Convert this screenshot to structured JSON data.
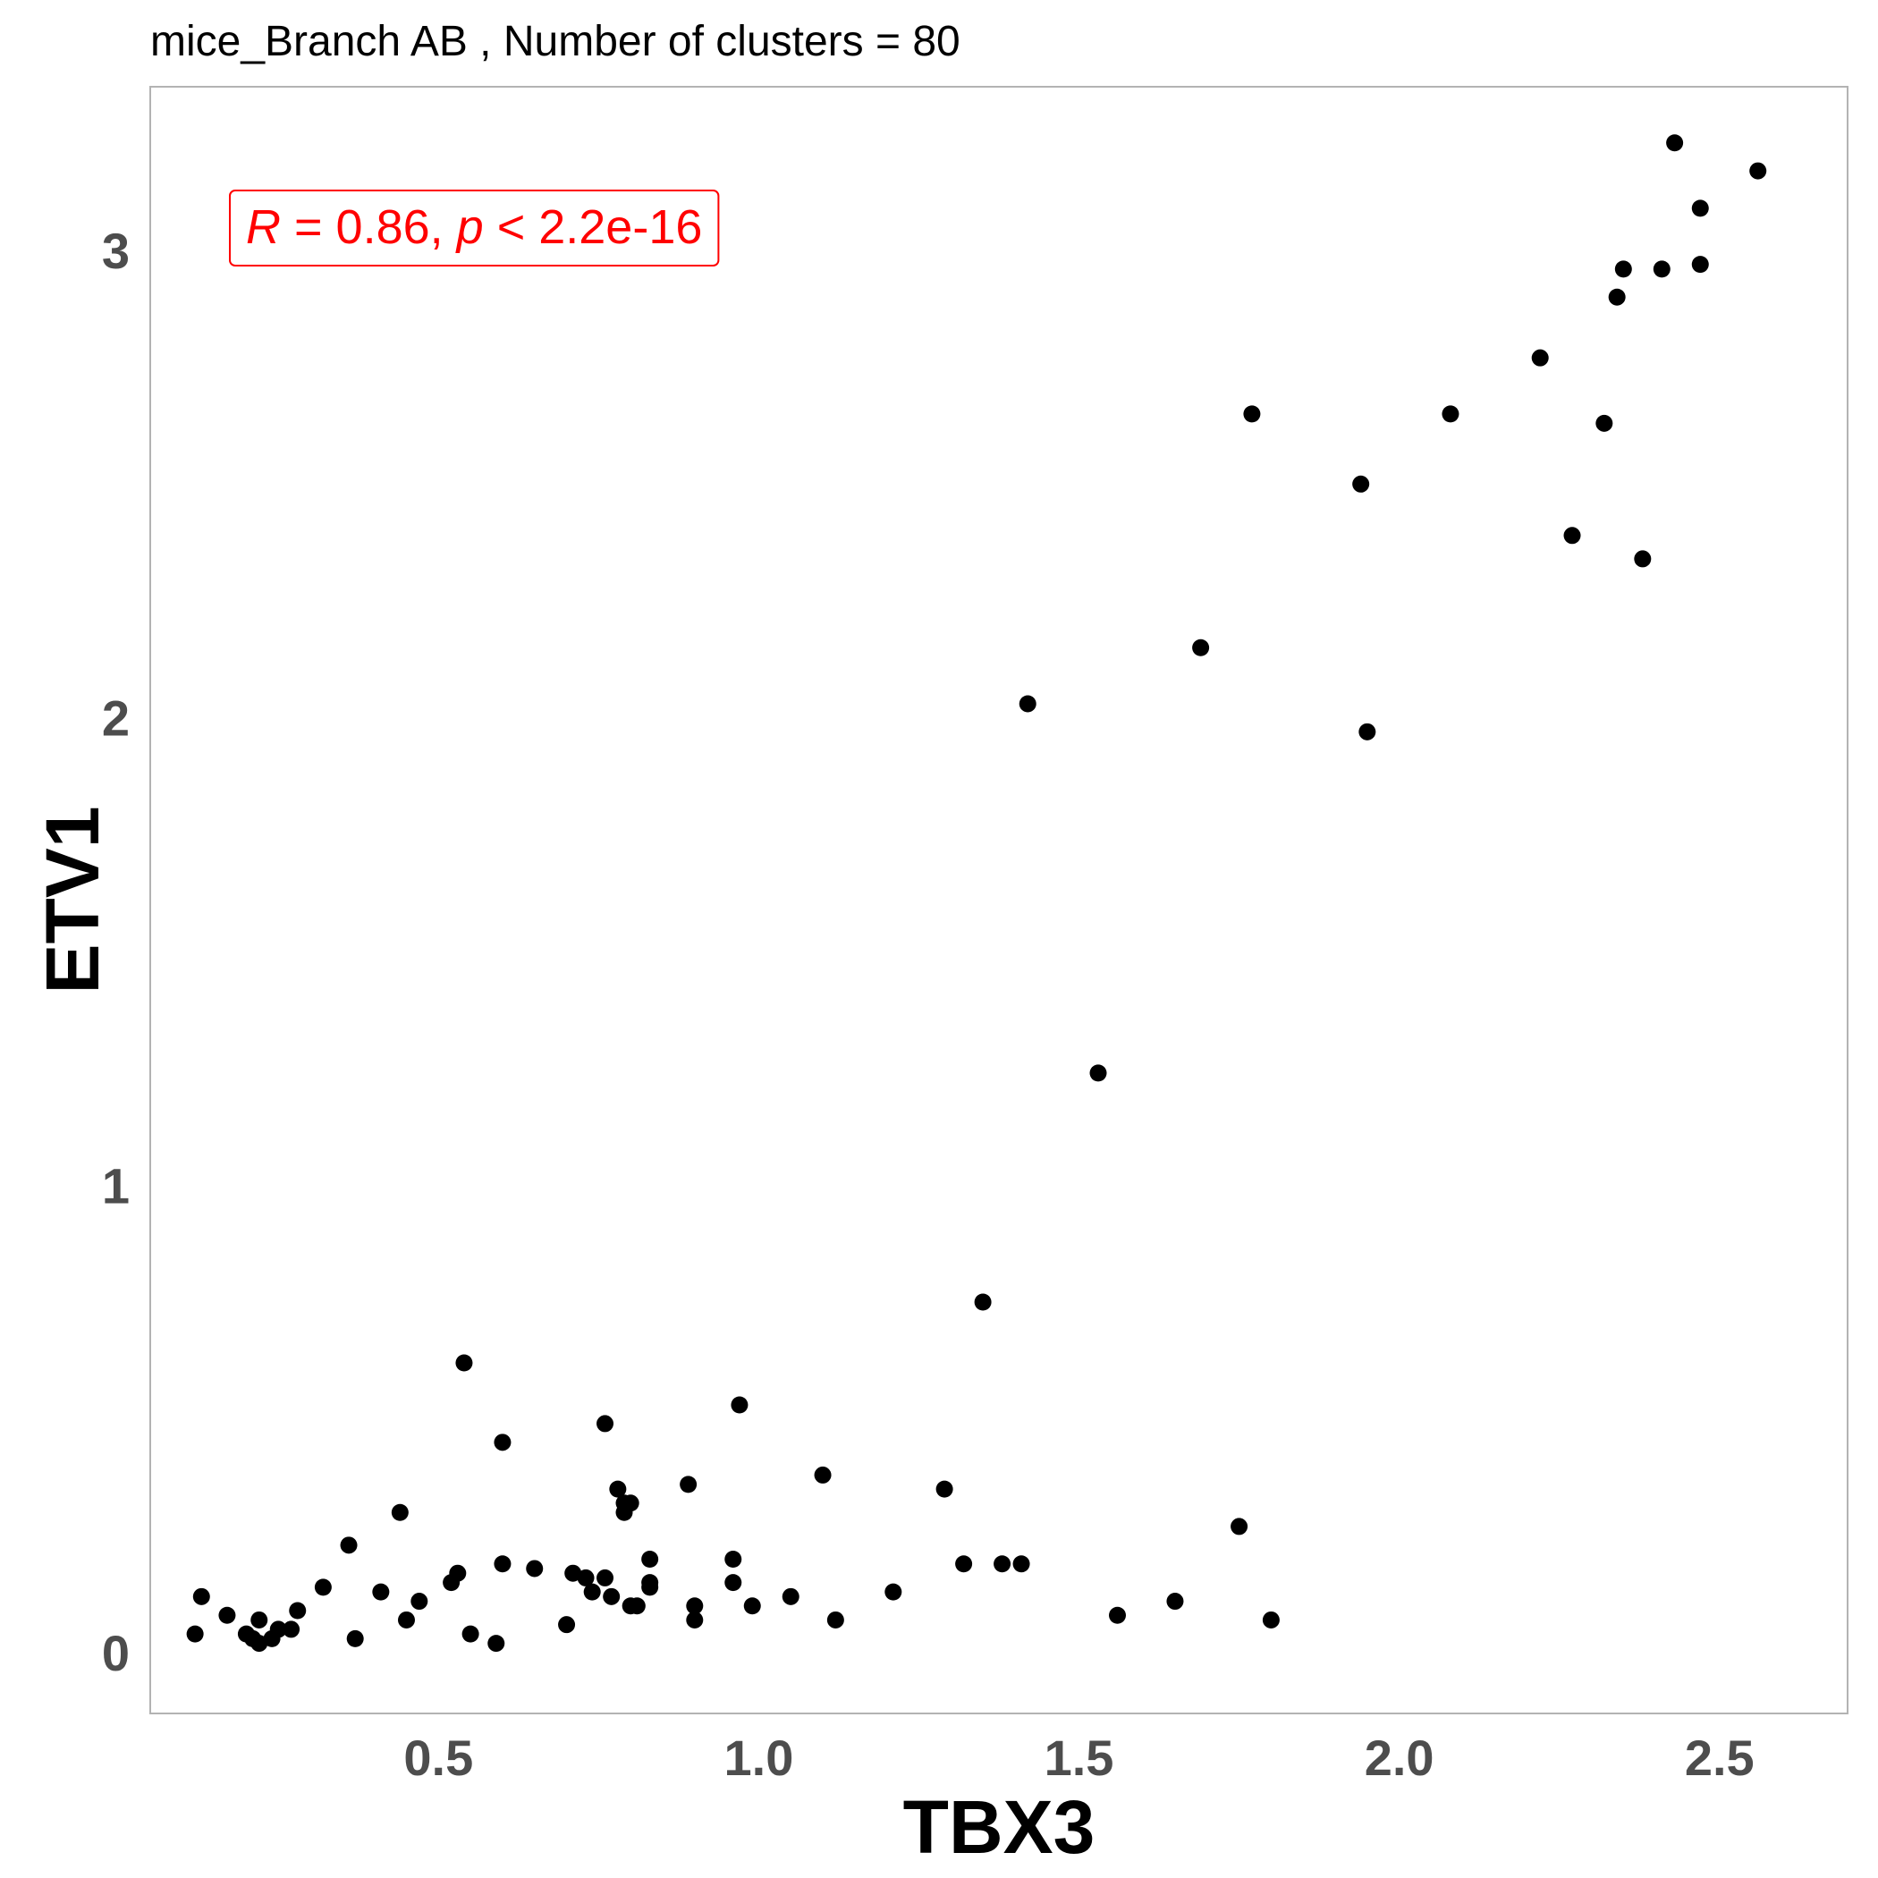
{
  "chart_data": {
    "type": "scatter",
    "title": "mice_Branch AB , Number of clusters =  80",
    "xlabel": "TBX3",
    "ylabel": "ETV1",
    "xlim": [
      0.05,
      2.7
    ],
    "ylim": [
      -0.13,
      3.35
    ],
    "x_ticks": [
      0.5,
      1.0,
      1.5,
      2.0,
      2.5
    ],
    "x_tick_labels": [
      "0.5",
      "1.0",
      "1.5",
      "2.0",
      "2.5"
    ],
    "y_ticks": [
      0,
      1,
      2,
      3
    ],
    "y_tick_labels": [
      "0",
      "1",
      "2",
      "3"
    ],
    "grid": false,
    "point_color": "#000000",
    "annotation": {
      "r_label": "R",
      "r_text": " = 0.86, ",
      "p_label": "p",
      "p_text": " < 2.2e-16",
      "color": "#ff0000"
    },
    "points": [
      {
        "x": 2.43,
        "y": 3.23
      },
      {
        "x": 2.56,
        "y": 3.17
      },
      {
        "x": 2.47,
        "y": 3.09
      },
      {
        "x": 2.35,
        "y": 2.96
      },
      {
        "x": 2.41,
        "y": 2.96
      },
      {
        "x": 2.47,
        "y": 2.97
      },
      {
        "x": 2.34,
        "y": 2.9
      },
      {
        "x": 2.22,
        "y": 2.77
      },
      {
        "x": 1.77,
        "y": 2.65
      },
      {
        "x": 2.08,
        "y": 2.65
      },
      {
        "x": 2.32,
        "y": 2.63
      },
      {
        "x": 1.94,
        "y": 2.5
      },
      {
        "x": 2.27,
        "y": 2.39
      },
      {
        "x": 2.38,
        "y": 2.34
      },
      {
        "x": 1.69,
        "y": 2.15
      },
      {
        "x": 1.42,
        "y": 2.03
      },
      {
        "x": 1.95,
        "y": 1.97
      },
      {
        "x": 1.53,
        "y": 1.24
      },
      {
        "x": 1.35,
        "y": 0.75
      },
      {
        "x": 0.54,
        "y": 0.62
      },
      {
        "x": 0.97,
        "y": 0.53
      },
      {
        "x": 0.76,
        "y": 0.49
      },
      {
        "x": 0.6,
        "y": 0.45
      },
      {
        "x": 1.1,
        "y": 0.38
      },
      {
        "x": 0.89,
        "y": 0.36
      },
      {
        "x": 1.29,
        "y": 0.35
      },
      {
        "x": 0.78,
        "y": 0.35
      },
      {
        "x": 0.79,
        "y": 0.32
      },
      {
        "x": 0.8,
        "y": 0.32
      },
      {
        "x": 0.79,
        "y": 0.3
      },
      {
        "x": 0.44,
        "y": 0.3
      },
      {
        "x": 1.75,
        "y": 0.27
      },
      {
        "x": 0.36,
        "y": 0.23
      },
      {
        "x": 0.83,
        "y": 0.2
      },
      {
        "x": 0.96,
        "y": 0.2
      },
      {
        "x": 1.32,
        "y": 0.19
      },
      {
        "x": 1.38,
        "y": 0.19
      },
      {
        "x": 1.41,
        "y": 0.19
      },
      {
        "x": 0.6,
        "y": 0.19
      },
      {
        "x": 0.65,
        "y": 0.18
      },
      {
        "x": 0.53,
        "y": 0.17
      },
      {
        "x": 0.71,
        "y": 0.17
      },
      {
        "x": 0.73,
        "y": 0.16
      },
      {
        "x": 0.76,
        "y": 0.16
      },
      {
        "x": 0.52,
        "y": 0.15
      },
      {
        "x": 0.96,
        "y": 0.15
      },
      {
        "x": 0.83,
        "y": 0.15
      },
      {
        "x": 0.83,
        "y": 0.14
      },
      {
        "x": 0.32,
        "y": 0.14
      },
      {
        "x": 0.41,
        "y": 0.13
      },
      {
        "x": 1.21,
        "y": 0.13
      },
      {
        "x": 0.74,
        "y": 0.13
      },
      {
        "x": 0.77,
        "y": 0.12
      },
      {
        "x": 1.05,
        "y": 0.12
      },
      {
        "x": 0.13,
        "y": 0.12
      },
      {
        "x": 0.47,
        "y": 0.11
      },
      {
        "x": 0.99,
        "y": 0.1
      },
      {
        "x": 1.65,
        "y": 0.11
      },
      {
        "x": 0.8,
        "y": 0.1
      },
      {
        "x": 0.81,
        "y": 0.1
      },
      {
        "x": 0.9,
        "y": 0.1
      },
      {
        "x": 0.28,
        "y": 0.09
      },
      {
        "x": 0.17,
        "y": 0.08
      },
      {
        "x": 1.56,
        "y": 0.08
      },
      {
        "x": 0.45,
        "y": 0.07
      },
      {
        "x": 1.12,
        "y": 0.07
      },
      {
        "x": 1.8,
        "y": 0.07
      },
      {
        "x": 0.22,
        "y": 0.07
      },
      {
        "x": 0.9,
        "y": 0.07
      },
      {
        "x": 0.7,
        "y": 0.06
      },
      {
        "x": 0.25,
        "y": 0.05
      },
      {
        "x": 0.27,
        "y": 0.05
      },
      {
        "x": 0.12,
        "y": 0.04
      },
      {
        "x": 0.2,
        "y": 0.04
      },
      {
        "x": 0.55,
        "y": 0.04
      },
      {
        "x": 0.21,
        "y": 0.03
      },
      {
        "x": 0.24,
        "y": 0.03
      },
      {
        "x": 0.22,
        "y": 0.02
      },
      {
        "x": 0.37,
        "y": 0.03
      },
      {
        "x": 0.59,
        "y": 0.02
      }
    ]
  }
}
